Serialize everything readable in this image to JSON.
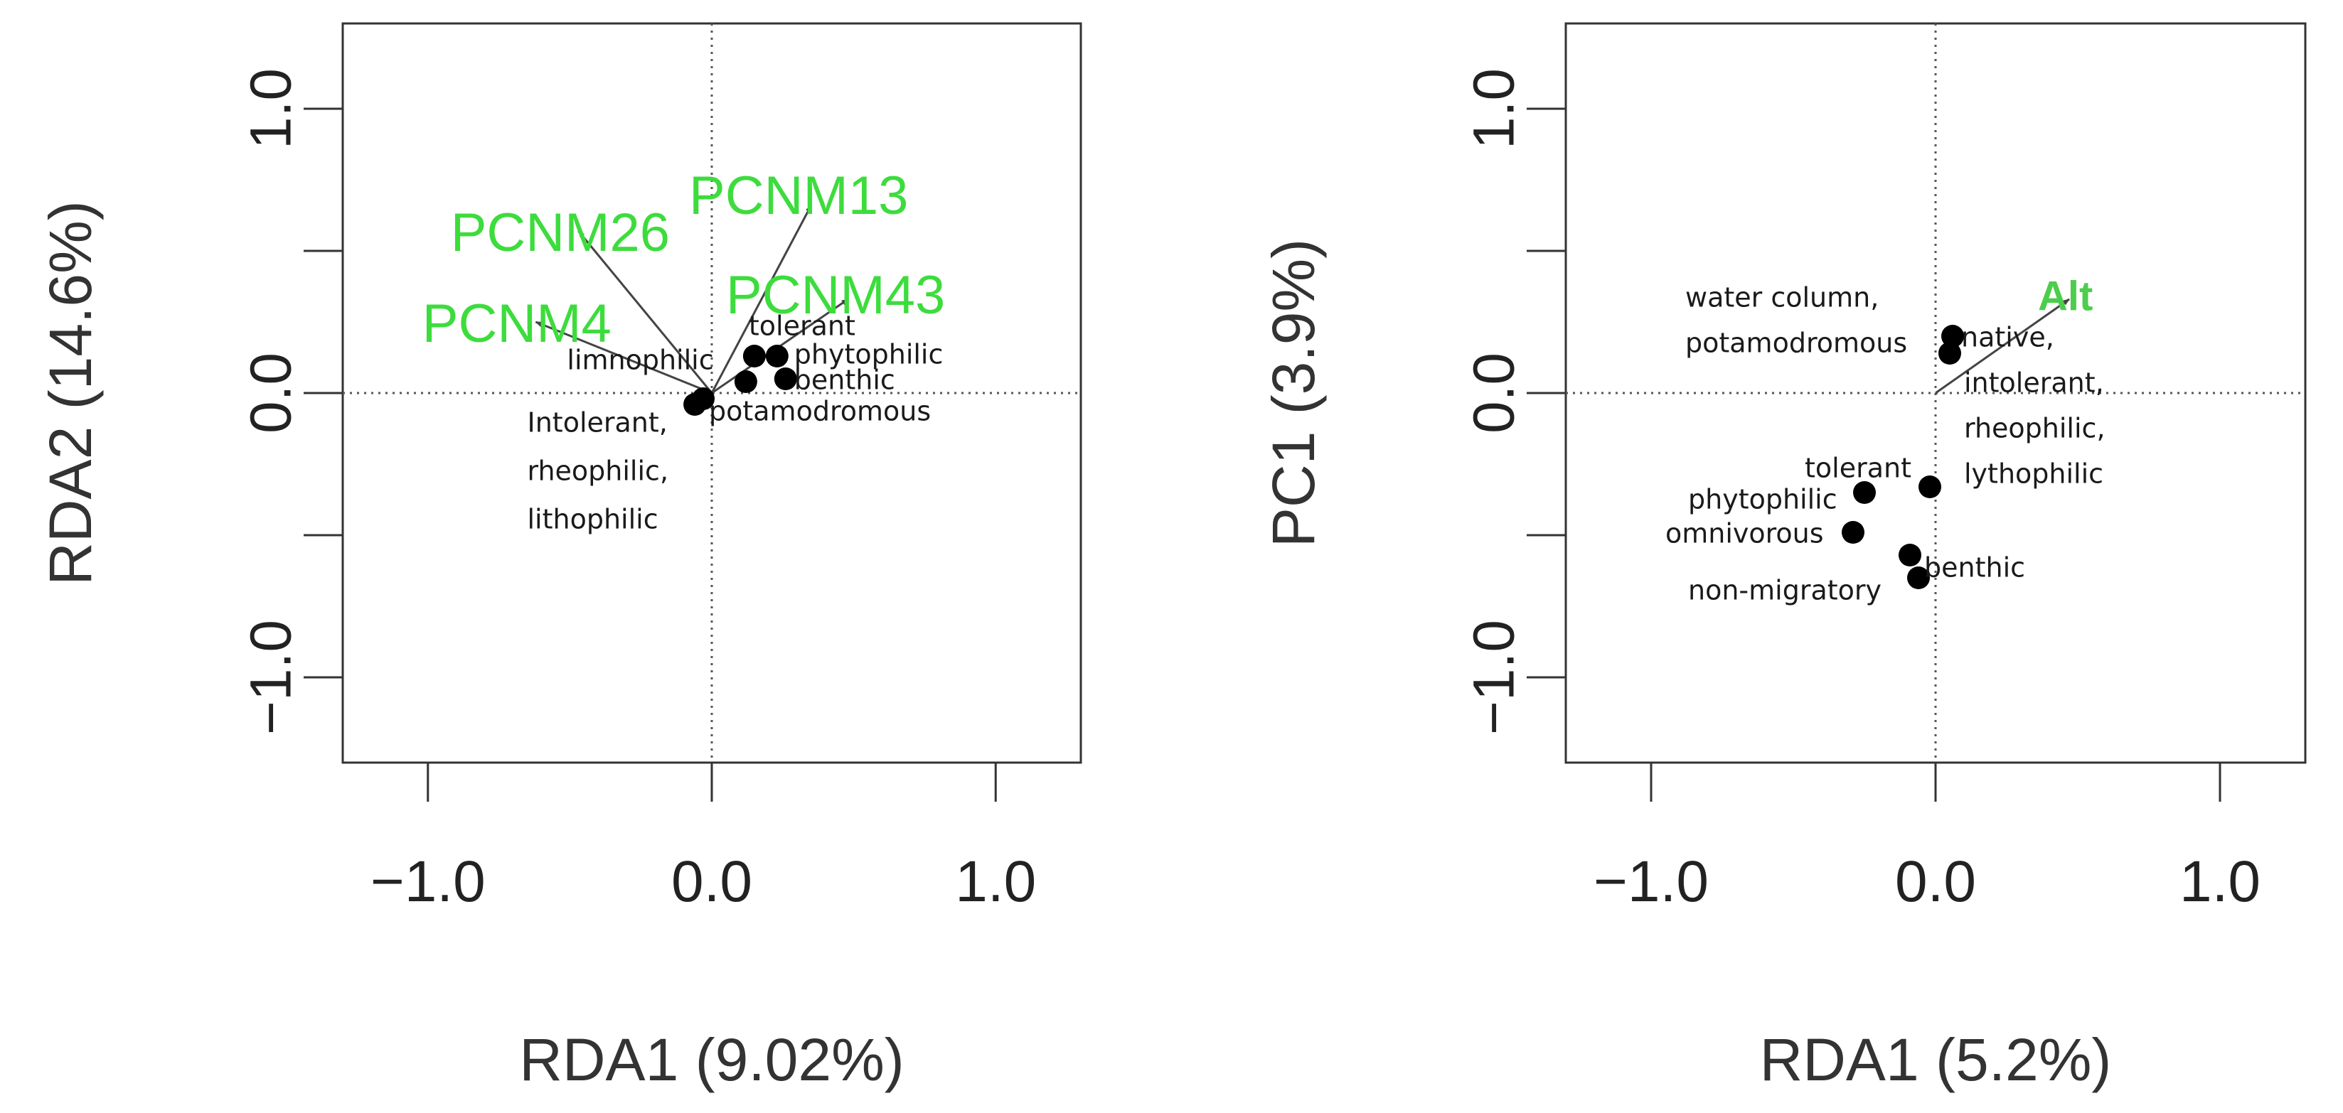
{
  "colors": {
    "vector_label": "#3ddc3d",
    "vector_label_alt": "#4ccd4c",
    "point": "#000000",
    "arrow": "#444444",
    "frame": "#333333"
  },
  "chart_data": [
    {
      "type": "scatter",
      "title": "",
      "xlabel": "RDA1 (9.02%)",
      "ylabel": "RDA2 (14.6%)",
      "xlim": [
        -1.3,
        1.3
      ],
      "ylim": [
        -1.3,
        1.3
      ],
      "xticks": [
        -1.0,
        0.0,
        1.0
      ],
      "xtick_labels": [
        "−1.0",
        "0.0",
        "1.0"
      ],
      "yticks": [
        -1.0,
        -0.5,
        0.0,
        0.5,
        1.0
      ],
      "ytick_labels": [
        "−1.0",
        "",
        "0.0",
        "",
        "1.0"
      ],
      "reference_lines": {
        "x": 0,
        "y": 0,
        "style": "dotted"
      },
      "points": [
        {
          "x": -0.06,
          "y": -0.04
        },
        {
          "x": -0.03,
          "y": -0.02
        },
        {
          "x": 0.12,
          "y": 0.04
        },
        {
          "x": 0.15,
          "y": 0.13
        },
        {
          "x": 0.23,
          "y": 0.13
        },
        {
          "x": 0.26,
          "y": 0.05
        }
      ],
      "point_labels": [
        {
          "text": "tolerant",
          "x": 0.13,
          "y": 0.23
        },
        {
          "text": "limnophilic",
          "x": -0.51,
          "y": 0.11
        },
        {
          "text": "phytophilic",
          "x": 0.29,
          "y": 0.13
        },
        {
          "text": "benthic",
          "x": 0.29,
          "y": 0.04
        },
        {
          "text": "potamodromous",
          "x": -0.01,
          "y": -0.07
        },
        {
          "text": "Intolerant,",
          "x": -0.65,
          "y": -0.11
        },
        {
          "text": "rheophilic,",
          "x": -0.65,
          "y": -0.28
        },
        {
          "text": "lithophilic",
          "x": -0.65,
          "y": -0.45
        }
      ],
      "vectors": [
        {
          "name": "PCNM26",
          "x": -0.47,
          "y": 0.57,
          "label_x": -0.92,
          "label_y": 0.55
        },
        {
          "name": "PCNM13",
          "x": 0.35,
          "y": 0.66,
          "label_x": -0.08,
          "label_y": 0.68
        },
        {
          "name": "PCNM4",
          "x": -0.62,
          "y": 0.25,
          "label_x": -1.02,
          "label_y": 0.23
        },
        {
          "name": "PCNM43",
          "x": 0.48,
          "y": 0.33,
          "label_x": 0.05,
          "label_y": 0.33
        }
      ]
    },
    {
      "type": "scatter",
      "title": "",
      "xlabel": "RDA1 (5.2%)",
      "ylabel": "PC1 (3.9%)",
      "xlim": [
        -1.3,
        1.3
      ],
      "ylim": [
        -1.3,
        1.3
      ],
      "xticks": [
        -1.0,
        0.0,
        1.0
      ],
      "xtick_labels": [
        "−1.0",
        "0.0",
        "1.0"
      ],
      "yticks": [
        -1.0,
        -0.5,
        0.0,
        0.5,
        1.0
      ],
      "ytick_labels": [
        "−1.0",
        "",
        "0.0",
        "",
        "1.0"
      ],
      "reference_lines": {
        "x": 0,
        "y": 0,
        "style": "dotted"
      },
      "points": [
        {
          "x": 0.06,
          "y": 0.2
        },
        {
          "x": 0.05,
          "y": 0.14
        },
        {
          "x": -0.02,
          "y": -0.33
        },
        {
          "x": -0.25,
          "y": -0.35
        },
        {
          "x": -0.29,
          "y": -0.49
        },
        {
          "x": -0.09,
          "y": -0.57
        },
        {
          "x": -0.06,
          "y": -0.65
        }
      ],
      "point_labels": [
        {
          "text": "water column,",
          "x": -0.88,
          "y": 0.33
        },
        {
          "text": "potamodromous",
          "x": -0.88,
          "y": 0.17
        },
        {
          "text": "native,",
          "x": 0.09,
          "y": 0.19
        },
        {
          "text": "intolerant,",
          "x": 0.1,
          "y": 0.03
        },
        {
          "text": "rheophilic,",
          "x": 0.1,
          "y": -0.13
        },
        {
          "text": "lythophilic",
          "x": 0.1,
          "y": -0.29
        },
        {
          "text": "tolerant",
          "x": -0.46,
          "y": -0.27
        },
        {
          "text": "phytophilic",
          "x": -0.87,
          "y": -0.38
        },
        {
          "text": "omnivorous",
          "x": -0.95,
          "y": -0.5
        },
        {
          "text": "benthic",
          "x": -0.04,
          "y": -0.62
        },
        {
          "text": "non-migratory",
          "x": -0.87,
          "y": -0.7
        }
      ],
      "vectors": [
        {
          "name": "Alt",
          "x": 0.47,
          "y": 0.33,
          "label_x": 0.36,
          "label_y": 0.33
        }
      ]
    }
  ]
}
